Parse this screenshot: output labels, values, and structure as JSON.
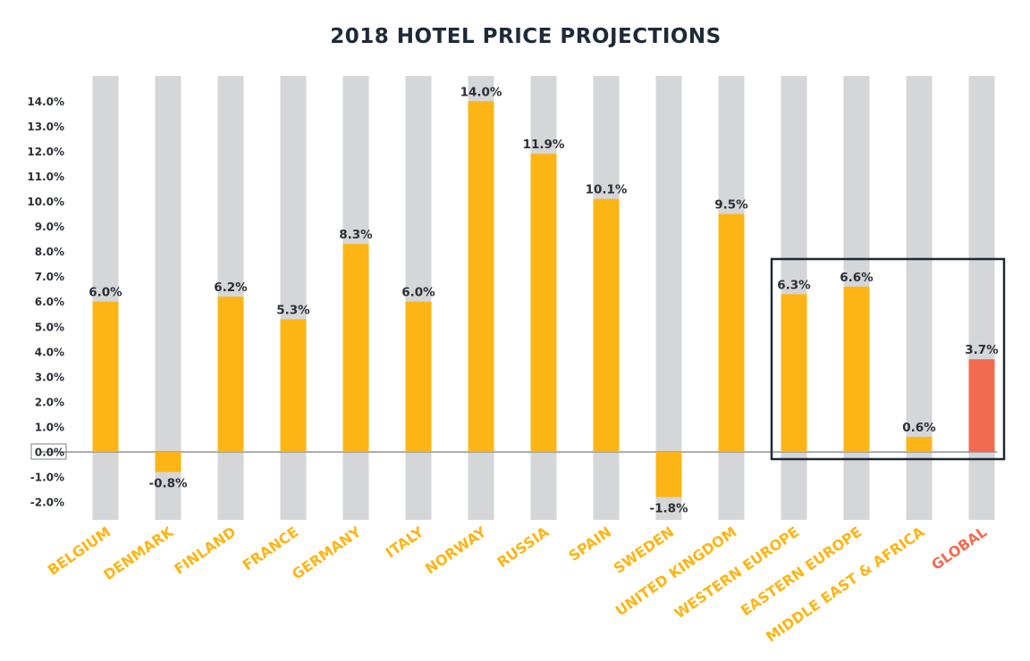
{
  "chart_data": {
    "type": "bar",
    "title": "2018 HOTEL PRICE PROJECTIONS",
    "xlabel": "",
    "ylabel": "",
    "ylim": [
      -2.7,
      15.0
    ],
    "yticks": [
      -2.0,
      -1.0,
      0.0,
      1.0,
      2.0,
      3.0,
      4.0,
      5.0,
      6.0,
      7.0,
      8.0,
      9.0,
      10.0,
      11.0,
      12.0,
      13.0,
      14.0
    ],
    "ytick_labels": [
      "-2.0%",
      "-1.0%",
      "0.0%",
      "1.0%",
      "2.0%",
      "3.0%",
      "4.0%",
      "5.0%",
      "6.0%",
      "7.0%",
      "8.0%",
      "9.0%",
      "10.0%",
      "11.0%",
      "12.0%",
      "13.0%",
      "14.0%"
    ],
    "categories": [
      "BELGIUM",
      "DENMARK",
      "FINLAND",
      "FRANCE",
      "GERMANY",
      "ITALY",
      "NORWAY",
      "RUSSIA",
      "SPAIN",
      "SWEDEN",
      "UNITED KINGDOM",
      "WESTERN EUROPE",
      "EASTERN EUROPE",
      "MIDDLE EAST & AFRICA",
      "GLOBAL"
    ],
    "values": [
      6.0,
      -0.8,
      6.2,
      5.3,
      8.3,
      6.0,
      14.0,
      11.9,
      10.1,
      -1.8,
      9.5,
      6.3,
      6.6,
      0.6,
      3.7
    ],
    "value_labels": [
      "6.0%",
      "-0.8%",
      "6.2%",
      "5.3%",
      "8.3%",
      "6.0%",
      "14.0%",
      "11.9%",
      "10.1%",
      "-1.8%",
      "9.5%",
      "6.3%",
      "6.6%",
      "0.6%",
      "3.7%"
    ],
    "colors": {
      "bar": "#fdb515",
      "highlight_bar": "#f26b50",
      "background_column": "#d5d6d8",
      "axis": "#8f9296",
      "text": "#2b2f36",
      "highlight_box": "#1f2a38"
    },
    "highlight_category": "GLOBAL",
    "highlight_box_categories": [
      "WESTERN EUROPE",
      "EASTERN EUROPE",
      "MIDDLE EAST & AFRICA",
      "GLOBAL"
    ],
    "grid": false,
    "legend": "none"
  }
}
